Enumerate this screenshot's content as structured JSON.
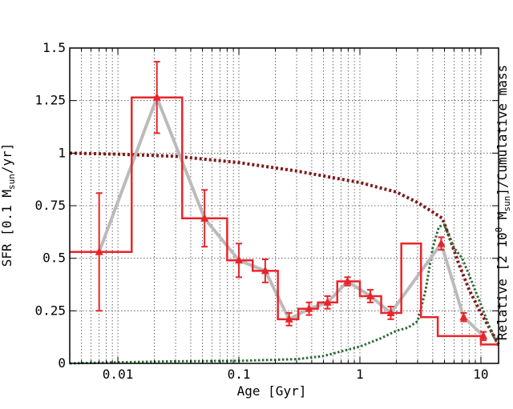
{
  "chart_data": {
    "type": "line",
    "xlabel": "Age [Gyr]",
    "ylabel_left": {
      "prefix": "SFR [0.1 M",
      "sub": "sun",
      "suffix": "/yr]"
    },
    "ylabel_right": {
      "prefix": "Relative [2 10",
      "sup": "8",
      "mid": " M",
      "sub": "sun",
      "suffix": "]/Cumulative mass"
    },
    "xscale": "log",
    "xlim": [
      0.004,
      14
    ],
    "ylim": [
      0,
      1.5
    ],
    "grid": true,
    "x_ticks": [
      {
        "value": 0.01,
        "label": "0.01"
      },
      {
        "value": 0.1,
        "label": "0.1"
      },
      {
        "value": 1,
        "label": "1"
      },
      {
        "value": 10,
        "label": "10"
      }
    ],
    "y_ticks": [
      {
        "value": 0,
        "label": "0"
      },
      {
        "value": 0.25,
        "label": "0.25"
      },
      {
        "value": 0.5,
        "label": "0.5"
      },
      {
        "value": 0.75,
        "label": "0.75"
      },
      {
        "value": 1,
        "label": "1"
      },
      {
        "value": 1.25,
        "label": "1.25"
      },
      {
        "value": 1.5,
        "label": "1.5"
      }
    ],
    "colors": {
      "sfr_steps": "#e8252b",
      "sfr_points": "#e8252b",
      "trend_line": "#bbbbbb",
      "cumulative_mass": "#7f1a1a",
      "relative_mass": "#2e6a34"
    },
    "sfr_histogram": {
      "edges": [
        0.004,
        0.013,
        0.034,
        0.08,
        0.13,
        0.21,
        0.31,
        0.45,
        0.65,
        1.0,
        1.5,
        2.2,
        3.2,
        4.4,
        6.8,
        10,
        14
      ],
      "values": [
        0.53,
        1.265,
        0.69,
        0.49,
        0.44,
        0.21,
        0.26,
        0.29,
        0.39,
        0.32,
        0.24,
        0.57,
        0.22,
        0.13,
        0.13,
        0.09
      ]
    },
    "sfr_points": [
      {
        "x": 0.007,
        "y": 0.53,
        "err": 0.28
      },
      {
        "x": 0.021,
        "y": 1.265,
        "err": 0.17
      },
      {
        "x": 0.052,
        "y": 0.69,
        "err": 0.135
      },
      {
        "x": 0.1,
        "y": 0.49,
        "err": 0.08
      },
      {
        "x": 0.165,
        "y": 0.44,
        "err": 0.055
      },
      {
        "x": 0.26,
        "y": 0.21,
        "err": 0.03
      },
      {
        "x": 0.38,
        "y": 0.26,
        "err": 0.03
      },
      {
        "x": 0.54,
        "y": 0.29,
        "err": 0.03
      },
      {
        "x": 0.79,
        "y": 0.39,
        "err": 0.02
      },
      {
        "x": 1.22,
        "y": 0.32,
        "err": 0.03
      },
      {
        "x": 1.8,
        "y": 0.24,
        "err": 0.03
      },
      {
        "x": 4.7,
        "y": 0.57,
        "err": 0.03
      },
      {
        "x": 7.2,
        "y": 0.22,
        "err": 0.02
      },
      {
        "x": 10.5,
        "y": 0.13,
        "err": 0.02
      }
    ],
    "cumulative_mass": {
      "x": [
        0.004,
        0.01,
        0.03,
        0.1,
        0.3,
        1,
        2,
        3,
        4,
        4.8,
        5.5,
        6.5,
        8,
        10,
        12,
        14
      ],
      "y": [
        1.0,
        0.995,
        0.985,
        0.955,
        0.915,
        0.86,
        0.815,
        0.765,
        0.72,
        0.69,
        0.6,
        0.48,
        0.35,
        0.24,
        0.16,
        0.09
      ]
    },
    "relative_mass": {
      "x": [
        0.004,
        0.01,
        0.03,
        0.1,
        0.3,
        0.5,
        1,
        1.5,
        2,
        2.5,
        3,
        3.5,
        4,
        4.5,
        5,
        5.5,
        6,
        7,
        8,
        10,
        12,
        14
      ],
      "y": [
        0.0,
        0.005,
        0.01,
        0.012,
        0.02,
        0.035,
        0.08,
        0.12,
        0.155,
        0.17,
        0.2,
        0.35,
        0.55,
        0.65,
        0.66,
        0.6,
        0.55,
        0.5,
        0.42,
        0.28,
        0.16,
        0.08
      ]
    }
  }
}
